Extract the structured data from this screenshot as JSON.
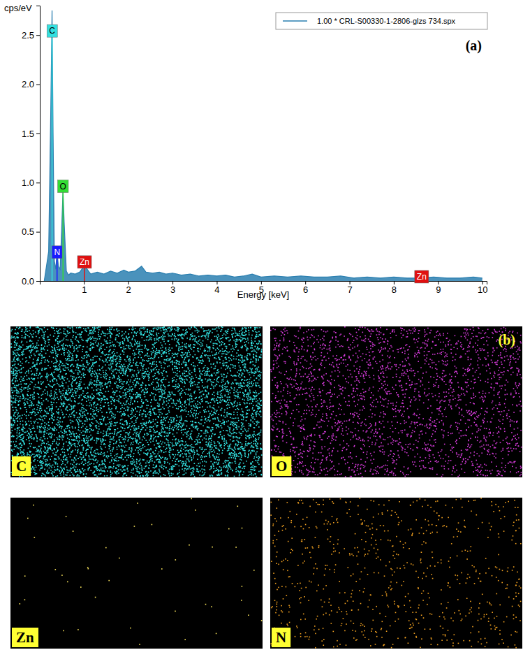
{
  "chart_data": {
    "type": "area",
    "y_label": "cps/eV",
    "x_label": "Energy [keV]",
    "panel_label": "(a)",
    "legend": "upper right",
    "x": [
      0.1,
      0.2,
      0.25,
      0.277,
      0.3,
      0.33,
      0.36,
      0.39,
      0.42,
      0.46,
      0.5,
      0.525,
      0.55,
      0.6,
      0.65,
      0.7,
      0.8,
      0.9,
      0.95,
      1.01,
      1.07,
      1.15,
      1.3,
      1.45,
      1.6,
      1.75,
      1.9,
      2.0,
      2.15,
      2.3,
      2.4,
      2.55,
      2.7,
      2.85,
      3.0,
      3.2,
      3.4,
      3.6,
      3.8,
      4.0,
      4.2,
      4.4,
      4.6,
      4.8,
      5.0,
      5.3,
      5.6,
      5.9,
      6.2,
      6.5,
      6.8,
      7.1,
      7.4,
      7.7,
      8.0,
      8.3,
      8.6,
      8.9,
      9.2,
      9.5,
      9.8,
      10.0
    ],
    "series": [
      {
        "name": "1.00 * CRL-S00330-1-2806-glzs 734.spx",
        "color": "#2a7fb0",
        "values": [
          0.0,
          0.3,
          1.8,
          2.75,
          1.5,
          0.2,
          0.12,
          0.3,
          0.15,
          0.12,
          0.6,
          0.93,
          0.6,
          0.1,
          0.06,
          0.08,
          0.07,
          0.09,
          0.12,
          0.17,
          0.12,
          0.07,
          0.09,
          0.07,
          0.1,
          0.08,
          0.11,
          0.09,
          0.1,
          0.15,
          0.09,
          0.08,
          0.09,
          0.07,
          0.08,
          0.06,
          0.07,
          0.05,
          0.06,
          0.05,
          0.06,
          0.04,
          0.05,
          0.07,
          0.04,
          0.05,
          0.04,
          0.05,
          0.04,
          0.04,
          0.05,
          0.03,
          0.04,
          0.03,
          0.04,
          0.03,
          0.03,
          0.04,
          0.03,
          0.03,
          0.04,
          0.03
        ]
      }
    ],
    "annotations": [
      {
        "text": "C",
        "x": 0.277,
        "y": 2.55,
        "color": "#33e0e0"
      },
      {
        "text": "N",
        "x": 0.39,
        "y": 0.3,
        "color": "#1a1aff"
      },
      {
        "text": "O",
        "x": 0.525,
        "y": 0.97,
        "color": "#33dd33"
      },
      {
        "text": "Zn",
        "x": 1.01,
        "y": 0.2,
        "color": "#e01010"
      },
      {
        "text": "Zn",
        "x": 8.63,
        "y": 0.05,
        "color": "#e01010"
      }
    ],
    "xlim": [
      0,
      10.1
    ],
    "xticks": [
      1,
      2,
      3,
      4,
      5,
      6,
      7,
      8,
      9,
      10
    ],
    "ylim": [
      0,
      2.8
    ],
    "yticks": [
      {
        "value": 0,
        "label": "0.0"
      },
      0.5,
      {
        "value": 1,
        "label": "1.0"
      },
      1.5,
      {
        "value": 2,
        "label": "2.0"
      },
      2.5
    ]
  },
  "maps": {
    "label": "(b)",
    "panels": [
      {
        "element": "C",
        "color": "#33e5e5"
      },
      {
        "element": "O",
        "color": "#d33ad8"
      },
      {
        "element": "Zn",
        "color": "#f5e05a"
      },
      {
        "element": "N",
        "color": "#f0a020"
      }
    ]
  }
}
